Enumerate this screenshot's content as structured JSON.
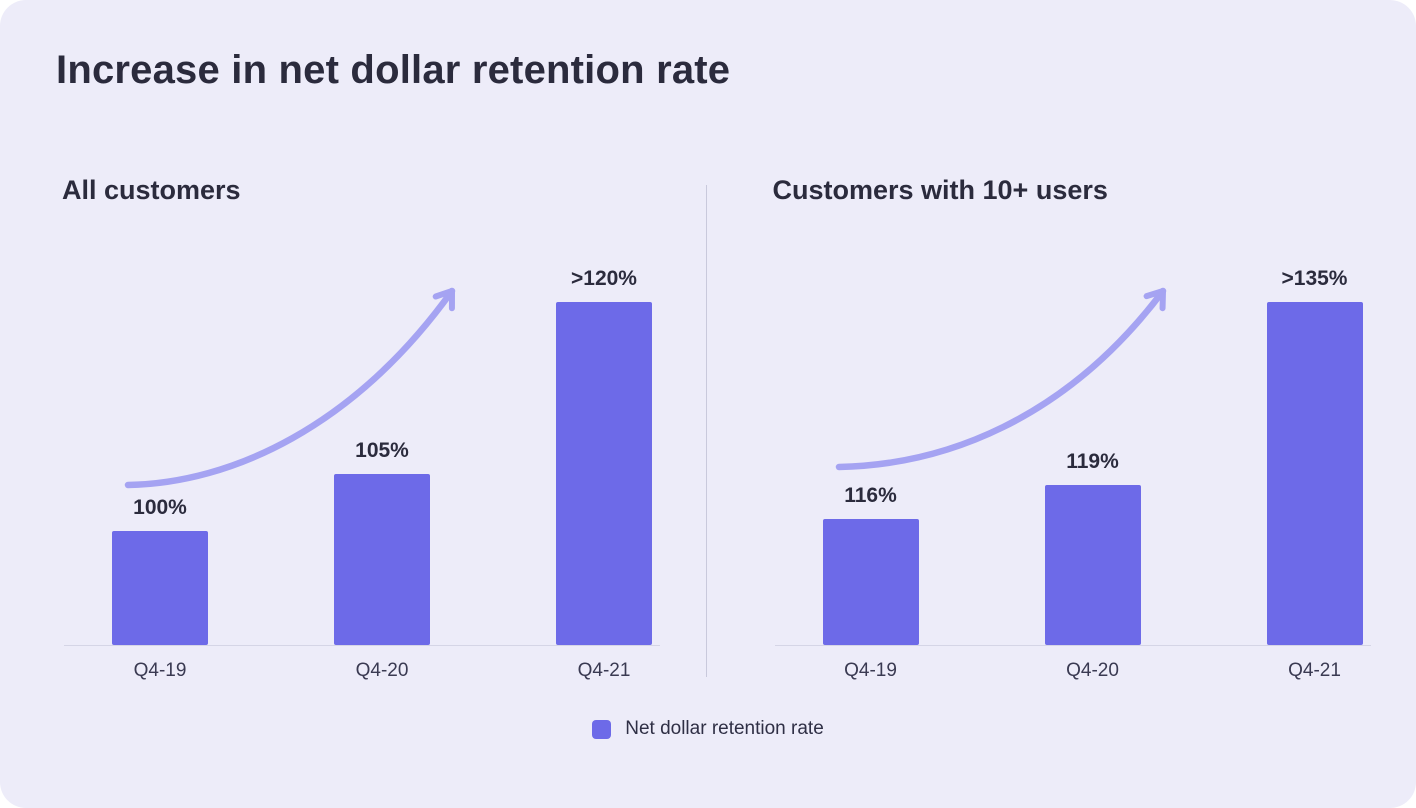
{
  "page": {
    "title": "Increase in net dollar retention rate"
  },
  "colors": {
    "background": "#EDECF9",
    "bar": "#6D6AE8",
    "arrow": "#A5A3F2",
    "text_dark": "#2B2B3D"
  },
  "legend": {
    "label": "Net dollar retention rate"
  },
  "chart_data": [
    {
      "type": "bar",
      "title": "All customers",
      "categories": [
        "Q4-19",
        "Q4-20",
        "Q4-21"
      ],
      "values": [
        100,
        105,
        120
      ],
      "value_labels": [
        "100%",
        "105%",
        ">120%"
      ],
      "series_name": "Net dollar retention rate",
      "ylim": [
        90,
        125
      ],
      "grid": false,
      "legend_position": "bottom-center",
      "annotations": [
        "curved upward growth arrow"
      ]
    },
    {
      "type": "bar",
      "title": "Customers with 10+ users",
      "categories": [
        "Q4-19",
        "Q4-20",
        "Q4-21"
      ],
      "values": [
        116,
        119,
        135
      ],
      "value_labels": [
        "116%",
        "119%",
        ">135%"
      ],
      "series_name": "Net dollar retention rate",
      "ylim": [
        105,
        140
      ],
      "grid": false,
      "legend_position": "bottom-center",
      "annotations": [
        "curved upward growth arrow"
      ]
    }
  ]
}
